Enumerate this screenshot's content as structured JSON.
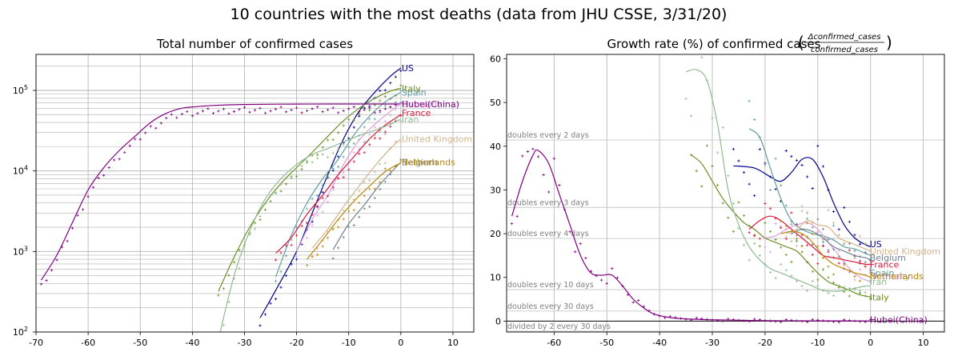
{
  "figure": {
    "title": "10 countries with the most deaths (data from JHU CSSE, 3/31/20)"
  },
  "chart_data": [
    {
      "type": "line",
      "title": "Total number of confirmed cases",
      "yscale": "log",
      "xlim": [
        -70,
        14
      ],
      "ylim": [
        100,
        280000
      ],
      "xticks": [
        -70,
        -60,
        -50,
        -40,
        -30,
        -20,
        -10,
        0,
        10
      ],
      "ytick_labels": [
        {
          "exp": 2,
          "label": "10",
          "sup": "2"
        },
        {
          "exp": 3,
          "label": "10",
          "sup": "3"
        },
        {
          "exp": 4,
          "label": "10",
          "sup": "4"
        },
        {
          "exp": 5,
          "label": "10",
          "sup": "5"
        }
      ],
      "series": [
        {
          "name": "US",
          "color": "#00008b",
          "x": [
            -27,
            -24,
            -20,
            -17,
            -14,
            -11,
            -8,
            -5,
            -2,
            0
          ],
          "y": [
            150,
            330,
            1000,
            3000,
            9000,
            25000,
            55000,
            95000,
            150000,
            190000
          ]
        },
        {
          "name": "Italy",
          "color": "#6b8e23",
          "x": [
            -35,
            -32,
            -29,
            -26,
            -23,
            -20,
            -17,
            -14,
            -11,
            -8,
            -5,
            -2,
            0
          ],
          "y": [
            320,
            850,
            2000,
            4000,
            7000,
            11000,
            17000,
            27000,
            42000,
            60000,
            80000,
            98000,
            106000
          ]
        },
        {
          "name": "Spain",
          "color": "#5f9ea0",
          "x": [
            -24,
            -21,
            -18,
            -15,
            -12,
            -9,
            -6,
            -3,
            0
          ],
          "y": [
            480,
            1600,
            4000,
            8000,
            14000,
            28000,
            48000,
            72000,
            95000
          ]
        },
        {
          "name": "Hubei(China)",
          "color": "#800080",
          "x": [
            -69,
            -66,
            -63,
            -60,
            -57,
            -54,
            -51,
            -48,
            -45,
            -42,
            -39,
            -36,
            -30,
            -20,
            -10,
            0
          ],
          "y": [
            440,
            900,
            2300,
            5800,
            11000,
            18000,
            27000,
            40000,
            52000,
            60000,
            63000,
            65000,
            66900,
            67700,
            67800,
            67800
          ]
        },
        {
          "name": "Germany",
          "color": "#dda0dd",
          "x": [
            -20,
            -17,
            -14,
            -11,
            -8,
            -5,
            -2,
            0
          ],
          "y": [
            1000,
            2500,
            5000,
            12000,
            24000,
            38000,
            55000,
            68000
          ]
        },
        {
          "name": "France",
          "color": "#dc143c",
          "x": [
            -24,
            -21,
            -18,
            -15,
            -12,
            -9,
            -6,
            -3,
            0
          ],
          "y": [
            950,
            1500,
            2900,
            5000,
            9000,
            15000,
            25000,
            37000,
            50000
          ]
        },
        {
          "name": "Iran",
          "color": "#8fbc8f",
          "x": [
            -35,
            -32,
            -29,
            -26,
            -23,
            -20,
            -17,
            -14,
            -11,
            -8,
            -5,
            -2,
            0
          ],
          "y": [
            80,
            500,
            1800,
            4500,
            8000,
            12000,
            16000,
            19000,
            23000,
            27500,
            32000,
            38000,
            44000
          ]
        },
        {
          "name": "United Kingdom",
          "color": "#d2b48c",
          "x": [
            -17,
            -14,
            -11,
            -8,
            -5,
            -2,
            0
          ],
          "y": [
            1100,
            1900,
            3600,
            6500,
            11500,
            19000,
            25000
          ]
        },
        {
          "name": "Belgium",
          "color": "#708090",
          "x": [
            -13,
            -10,
            -7,
            -4,
            -1,
            0
          ],
          "y": [
            1050,
            2200,
            3800,
            6800,
            11000,
            12800
          ]
        },
        {
          "name": "Netherlands",
          "color": "#b8860b",
          "x": [
            -18,
            -15,
            -12,
            -9,
            -6,
            -3,
            0
          ],
          "y": [
            800,
            1400,
            2500,
            4200,
            6500,
            9800,
            12600
          ]
        }
      ],
      "end_labels": [
        {
          "text": "US",
          "y": 190000
        },
        {
          "text": "Italy",
          "y": 106000
        },
        {
          "text": "Spain",
          "y": 95000
        },
        {
          "text": "Germany",
          "y": 68000
        },
        {
          "text": "Hubei(China)",
          "y": 67800
        },
        {
          "text": "France",
          "y": 53000
        },
        {
          "text": "Iran",
          "y": 44000
        },
        {
          "text": "United Kingdom",
          "y": 25000
        },
        {
          "text": "Belgium",
          "y": 12900
        },
        {
          "text": "Netherlands",
          "y": 12900
        }
      ]
    },
    {
      "type": "line",
      "title": "Growth rate (%) of confirmed cases",
      "formula": {
        "numerator": "Δconfirmed_cases",
        "denominator": "confirmed_cases"
      },
      "xlim": [
        -69,
        14
      ],
      "ylim": [
        -2.5,
        61
      ],
      "xticks": [
        -60,
        -50,
        -40,
        -30,
        -20,
        -10,
        0,
        10
      ],
      "yticks": [
        0,
        10,
        20,
        30,
        40,
        50,
        60
      ],
      "reference_lines": [
        {
          "label": "doubles every 2 days",
          "y": 41.4
        },
        {
          "label": "doubles every 3 days",
          "y": 26.0
        },
        {
          "label": "doubles every 4 days",
          "y": 18.9
        },
        {
          "label": "doubles every 10 days",
          "y": 7.2
        },
        {
          "label": "doubles every 30 days",
          "y": 2.3
        },
        {
          "label": "divided by 2 every 30 days",
          "y": -2.3
        }
      ],
      "series": [
        {
          "name": "US",
          "color": "#00008b",
          "x": [
            -26,
            -22,
            -19,
            -17,
            -15,
            -13,
            -11,
            -9,
            -7,
            -5,
            -3,
            -1,
            0
          ],
          "y": [
            35.5,
            35,
            33,
            32,
            34,
            37,
            37,
            33,
            27,
            22,
            19,
            17.5,
            17
          ]
        },
        {
          "name": "Spain",
          "color": "#5f9ea0",
          "x": [
            -23,
            -21,
            -19,
            -17,
            -15,
            -13,
            -11,
            -9,
            -7,
            -5,
            -3,
            -1,
            0
          ],
          "y": [
            44,
            42,
            35,
            28,
            23,
            21,
            20,
            19.5,
            18.5,
            17,
            16.5,
            15.5,
            15
          ]
        },
        {
          "name": "Italy",
          "color": "#6b8e23",
          "x": [
            -34,
            -32,
            -30,
            -28,
            -26,
            -24,
            -22,
            -20,
            -18,
            -16,
            -14,
            -12,
            -10,
            -8,
            -6,
            -4,
            -2,
            0
          ],
          "y": [
            38,
            36,
            32,
            28,
            25,
            22.5,
            21,
            19,
            18,
            17,
            16,
            13.5,
            11,
            9,
            8,
            7,
            6,
            5.5
          ]
        },
        {
          "name": "Hubei(China)",
          "color": "#800080",
          "x": [
            -68,
            -66,
            -64,
            -63,
            -61,
            -59,
            -57,
            -55,
            -53,
            -51,
            -49,
            -47,
            -45,
            -43,
            -41,
            -38,
            -35,
            -30,
            -20,
            -10,
            0
          ],
          "y": [
            24,
            32,
            38,
            39,
            36,
            29,
            22,
            15,
            11,
            10.5,
            10.5,
            8,
            5,
            3,
            1.6,
            0.8,
            0.5,
            0.3,
            0.1,
            0.05,
            0.02
          ]
        },
        {
          "name": "Germany",
          "color": "#dda0dd",
          "x": [
            -20,
            -18,
            -16,
            -14,
            -12,
            -10,
            -8,
            -6,
            -4,
            -2,
            0
          ],
          "y": [
            19,
            19.5,
            21,
            22,
            22.5,
            21,
            18,
            15,
            12,
            10,
            9
          ]
        },
        {
          "name": "France",
          "color": "#dc143c",
          "x": [
            -23,
            -21,
            -19,
            -17,
            -15,
            -13,
            -11,
            -9,
            -7,
            -5,
            -3,
            -1,
            0
          ],
          "y": [
            21,
            23,
            24,
            23,
            21,
            19,
            17,
            15,
            14.5,
            14,
            13.5,
            13,
            13
          ]
        },
        {
          "name": "Iran",
          "color": "#8fbc8f",
          "x": [
            -35,
            -33,
            -31,
            -29,
            -27,
            -25,
            -23,
            -21,
            -19,
            -17,
            -15,
            -13,
            -11,
            -9,
            -7,
            -5,
            -3,
            -1,
            0
          ],
          "y": [
            57,
            57.5,
            55,
            45,
            30,
            22,
            17,
            14,
            12,
            11,
            10,
            9,
            8,
            7,
            6.8,
            7,
            7.5,
            8,
            8
          ]
        },
        {
          "name": "United Kingdom",
          "color": "#d2b48c",
          "x": [
            -16,
            -14,
            -12,
            -10,
            -8,
            -6,
            -4,
            -2,
            0
          ],
          "y": [
            20,
            21,
            23,
            22,
            21.5,
            19,
            18,
            17,
            16
          ]
        },
        {
          "name": "Belgium",
          "color": "#708090",
          "x": [
            -15,
            -13,
            -11,
            -9,
            -7,
            -5,
            -3,
            -1,
            0
          ],
          "y": [
            20,
            21,
            20.5,
            19,
            17,
            16,
            15,
            14.5,
            14
          ]
        },
        {
          "name": "Netherlands",
          "color": "#b8860b",
          "x": [
            -17,
            -15,
            -13,
            -11,
            -9,
            -7,
            -5,
            -3,
            -1,
            0
          ],
          "y": [
            20,
            20.5,
            20,
            18,
            15,
            13,
            12,
            11,
            10.5,
            10
          ]
        }
      ],
      "end_labels": [
        {
          "text": "US",
          "y": 17.6
        },
        {
          "text": "United Kingdom",
          "y": 16
        },
        {
          "text": "Belgium",
          "y": 14.5
        },
        {
          "text": "France",
          "y": 13
        },
        {
          "text": "Spain",
          "y": 11
        },
        {
          "text": "Germany",
          "y": 10.3
        },
        {
          "text": "Netherlands",
          "y": 10.3
        },
        {
          "text": "Iran",
          "y": 9
        },
        {
          "text": "Italy",
          "y": 5.5
        },
        {
          "text": "Hubei(China)",
          "y": 0.3
        }
      ]
    }
  ]
}
